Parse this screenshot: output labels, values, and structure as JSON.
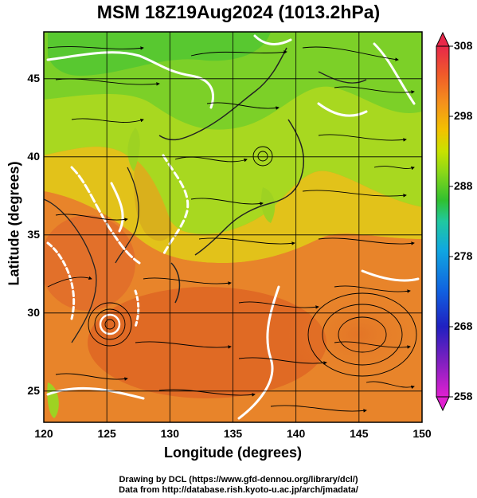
{
  "title": "MSM 18Z19Aug2024 (1013.2hPa)",
  "map": {
    "xlabel": "Longitude (degrees)",
    "ylabel": "Latitude  (degrees)",
    "lon_ticks": [
      "120",
      "125",
      "130",
      "135",
      "140",
      "145",
      "150"
    ],
    "lat_ticks": [
      "25",
      "30",
      "35",
      "40",
      "45"
    ],
    "lon_range": [
      120,
      150
    ],
    "lat_range": [
      23,
      48
    ],
    "grid": true
  },
  "colorbar": {
    "ticks": [
      "308",
      "298",
      "288",
      "278",
      "268",
      "258"
    ],
    "range": [
      258,
      308
    ],
    "colors": [
      "#e8284a",
      "#f05a2a",
      "#f4901c",
      "#f2c200",
      "#c8e200",
      "#8ad818",
      "#30c030",
      "#20c0a0",
      "#10a8e0",
      "#1060e0",
      "#2020c0",
      "#8020c0",
      "#e020d0"
    ]
  },
  "credits": {
    "line1": "Drawing by DCL (https://www.gfd-dennou.org/library/dcl/)",
    "line2": "Data from http://database.rish.kyoto-u.ac.jp/arch/jmadata/"
  }
}
